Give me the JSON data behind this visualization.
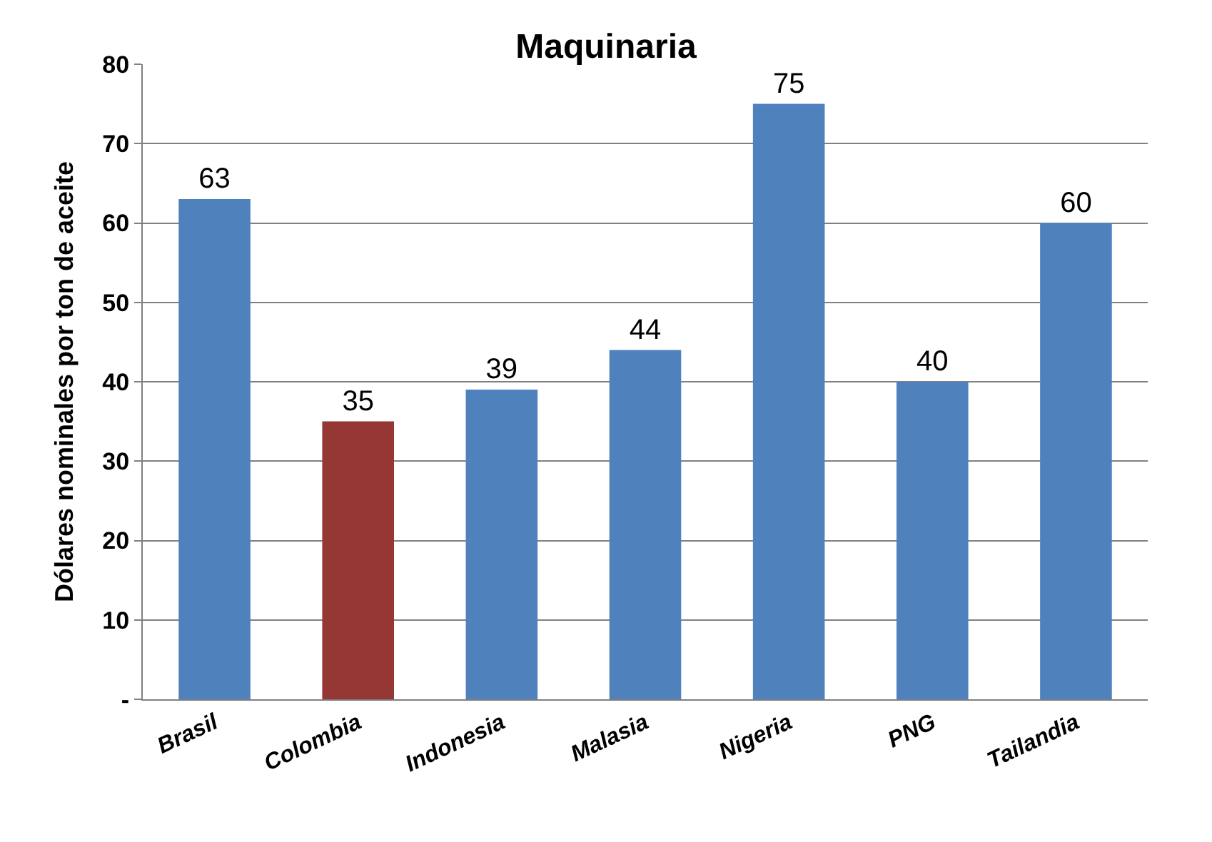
{
  "chart_data": {
    "type": "bar",
    "title": "Maquinaria",
    "ylabel": "Dólares nominales por ton de aceite",
    "categories": [
      "Brasil",
      "Colombia",
      "Indonesia",
      "Malasia",
      "Nigeria",
      "PNG",
      "Tailandia"
    ],
    "values": [
      63,
      35,
      39,
      44,
      75,
      40,
      60
    ],
    "colors": [
      "#4f81bd",
      "#953735",
      "#4f81bd",
      "#4f81bd",
      "#4f81bd",
      "#4f81bd",
      "#4f81bd"
    ],
    "ylim": [
      0,
      80
    ],
    "yticks": [
      {
        "value": 0,
        "label": "-"
      },
      10,
      20,
      30,
      40,
      50,
      60,
      70,
      80
    ],
    "grid": "y",
    "data_labels": true,
    "legend": false
  }
}
